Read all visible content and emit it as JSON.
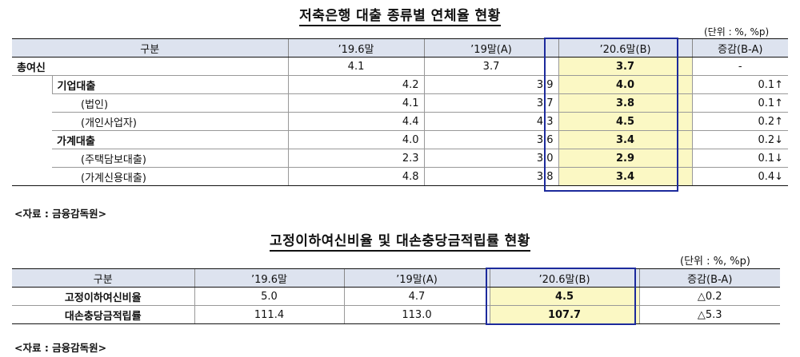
{
  "table1": {
    "title": "저축은행 대출 종류별 연체율 현황",
    "unit": "(단위 : %, %p)",
    "headers": [
      "구분",
      "’19.6말",
      "’19말(A)",
      "’20.6말(B)",
      "증감(B-A)"
    ],
    "rows": [
      {
        "label": "총여신",
        "v1": "4.1",
        "v2": "3.7",
        "v3": "3.7",
        "diff": "-"
      },
      {
        "label": "기업대출",
        "v1": "4.2",
        "v2": "3.9",
        "v3": "4.0",
        "diff": "0.1↑"
      },
      {
        "label": "(법인)",
        "v1": "4.1",
        "v2": "3.7",
        "v3": "3.8",
        "diff": "0.1↑"
      },
      {
        "label": "(개인사업자)",
        "v1": "4.4",
        "v2": "4.3",
        "v3": "4.5",
        "diff": "0.2↑"
      },
      {
        "label": "가계대출",
        "v1": "4.0",
        "v2": "3.6",
        "v3": "3.4",
        "diff": "0.2↓"
      },
      {
        "label": "(주택담보대출)",
        "v1": "2.3",
        "v2": "3.0",
        "v3": "2.9",
        "diff": "0.1↓"
      },
      {
        "label": "(가계신용대출)",
        "v1": "4.8",
        "v2": "3.8",
        "v3": "3.4",
        "diff": "0.4↓"
      }
    ],
    "source": "<자료 : 금융감독원>"
  },
  "table2": {
    "title": "고정이하여신비율 및 대손충당금적립률 현황",
    "unit": "(단위 : %, %p)",
    "headers": [
      "구분",
      "’19.6말",
      "’19말(A)",
      "’20.6말(B)",
      "증감(B-A)"
    ],
    "rows": [
      {
        "label": "고정이하여신비율",
        "v1": "5.0",
        "v2": "4.7",
        "v3": "4.5",
        "diff": "△0.2"
      },
      {
        "label": "대손충당금적립률",
        "v1": "111.4",
        "v2": "113.0",
        "v3": "107.7",
        "diff": "△5.3"
      }
    ],
    "source": "<자료 : 금융감독원>"
  }
}
